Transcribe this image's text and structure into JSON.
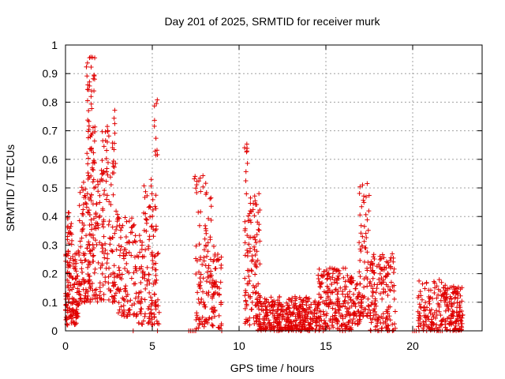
{
  "chart_data": {
    "type": "scatter",
    "title": "Day 201 of 2025, SRMTID for receiver murk",
    "xlabel": "GPS time / hours",
    "ylabel": "SRMTID / TECUs",
    "xlim": [
      0,
      24
    ],
    "ylim": [
      0,
      1
    ],
    "x_ticks": [
      0,
      5,
      10,
      15,
      20
    ],
    "y_ticks": [
      0,
      0.1,
      0.2,
      0.3,
      0.4,
      0.5,
      0.6,
      0.7,
      0.8,
      0.9,
      1
    ],
    "x_tick_labels": [
      "0",
      "5",
      "10",
      "15",
      "20"
    ],
    "y_tick_labels": [
      "0",
      "0.1",
      "0.2",
      "0.3",
      "0.4",
      "0.5",
      "0.6",
      "0.7",
      "0.8",
      "0.9",
      "1"
    ],
    "grid": true,
    "marker": "plus",
    "series_color": "#e00000",
    "clusters": [
      {
        "x_range": [
          0.0,
          0.8
        ],
        "y_range": [
          0.02,
          0.28
        ],
        "count": 140
      },
      {
        "x_range": [
          0.1,
          0.4
        ],
        "y_range": [
          0.3,
          0.42
        ],
        "count": 20
      },
      {
        "x_range": [
          0.8,
          1.6
        ],
        "y_range": [
          0.1,
          0.55
        ],
        "count": 120
      },
      {
        "x_range": [
          1.2,
          1.7
        ],
        "y_range": [
          0.55,
          0.97
        ],
        "count": 55
      },
      {
        "x_range": [
          1.6,
          3.0
        ],
        "y_range": [
          0.1,
          0.55
        ],
        "count": 140
      },
      {
        "x_range": [
          2.0,
          2.5
        ],
        "y_range": [
          0.55,
          0.72
        ],
        "count": 20
      },
      {
        "x_range": [
          2.7,
          2.9
        ],
        "y_range": [
          0.55,
          0.8
        ],
        "count": 15
      },
      {
        "x_range": [
          3.0,
          4.2
        ],
        "y_range": [
          0.05,
          0.4
        ],
        "count": 110
      },
      {
        "x_range": [
          4.2,
          5.4
        ],
        "y_range": [
          0.02,
          0.35
        ],
        "count": 110
      },
      {
        "x_range": [
          4.5,
          5.3
        ],
        "y_range": [
          0.35,
          0.55
        ],
        "count": 30
      },
      {
        "x_range": [
          5.1,
          5.3
        ],
        "y_range": [
          0.6,
          0.82
        ],
        "count": 10
      },
      {
        "x_range": [
          7.4,
          7.6
        ],
        "y_range": [
          0.48,
          0.58
        ],
        "count": 6
      },
      {
        "x_range": [
          7.5,
          9.0
        ],
        "y_range": [
          0.0,
          0.3
        ],
        "count": 130
      },
      {
        "x_range": [
          7.6,
          8.4
        ],
        "y_range": [
          0.3,
          0.55
        ],
        "count": 25
      },
      {
        "x_range": [
          10.3,
          10.5
        ],
        "y_range": [
          0.5,
          0.69
        ],
        "count": 8
      },
      {
        "x_range": [
          10.3,
          11.2
        ],
        "y_range": [
          0.02,
          0.48
        ],
        "count": 110
      },
      {
        "x_range": [
          11.0,
          14.5
        ],
        "y_range": [
          0.0,
          0.12
        ],
        "count": 360
      },
      {
        "x_range": [
          14.5,
          16.5
        ],
        "y_range": [
          0.0,
          0.22
        ],
        "count": 220
      },
      {
        "x_range": [
          16.5,
          17.0
        ],
        "y_range": [
          0.02,
          0.18
        ],
        "count": 40
      },
      {
        "x_range": [
          16.9,
          17.5
        ],
        "y_range": [
          0.05,
          0.52
        ],
        "count": 70
      },
      {
        "x_range": [
          17.5,
          19.0
        ],
        "y_range": [
          0.0,
          0.27
        ],
        "count": 150
      },
      {
        "x_range": [
          20.3,
          21.8
        ],
        "y_range": [
          0.0,
          0.18
        ],
        "count": 110
      },
      {
        "x_range": [
          21.8,
          22.9
        ],
        "y_range": [
          0.0,
          0.16
        ],
        "count": 130
      }
    ],
    "zero_values_x": [
      3.9,
      5.3,
      7.1,
      7.2,
      7.3,
      7.4,
      7.5,
      9.0,
      20.0,
      20.1,
      20.2,
      21.4,
      21.5,
      21.6,
      21.7
    ]
  }
}
